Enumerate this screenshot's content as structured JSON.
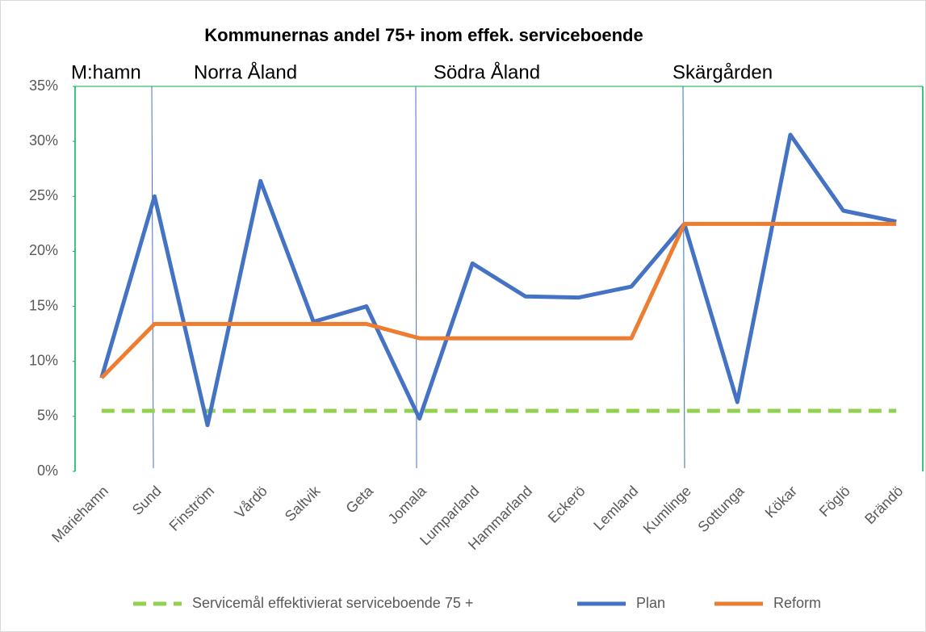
{
  "chart_data": {
    "type": "line",
    "title": "Kommunernas andel 75+ inom effek. serviceboende",
    "annotations": [
      "M:hamn",
      "Norra Åland",
      "Södra Åland",
      "Skärgården"
    ],
    "categories": [
      "Mariehamn",
      "Sund",
      "Finström",
      "Vårdö",
      "Saltvik",
      "Geta",
      "Jomala",
      "Lumparland",
      "Hammarland",
      "Eckerö",
      "Lemland",
      "Kumlinge",
      "Sottunga",
      "Kökar",
      "Föglö",
      "Brändö"
    ],
    "series": [
      {
        "name": "Servicemål effektivierat serviceboende 75 +",
        "color": "#92d050",
        "dashed": true,
        "values": [
          5.5,
          5.5,
          5.5,
          5.5,
          5.5,
          5.5,
          5.5,
          5.5,
          5.5,
          5.5,
          5.5,
          5.5,
          5.5,
          5.5,
          5.5,
          5.5
        ]
      },
      {
        "name": "Plan",
        "color": "#4472c4",
        "values": [
          8.5,
          25.0,
          4.2,
          26.4,
          13.6,
          15.0,
          4.8,
          18.9,
          15.9,
          15.8,
          16.8,
          22.5,
          6.3,
          30.6,
          23.7,
          22.7
        ]
      },
      {
        "name": "Reform",
        "color": "#ed7d31",
        "values": [
          8.5,
          13.4,
          13.4,
          13.4,
          13.4,
          13.4,
          12.1,
          12.1,
          12.1,
          12.1,
          12.1,
          22.5,
          22.5,
          22.5,
          22.5,
          22.5
        ]
      }
    ],
    "ylim": [
      0,
      35
    ],
    "yticks": [
      {
        "value": 0,
        "label": "0%"
      },
      {
        "value": 5,
        "label": "5%"
      },
      {
        "value": 10,
        "label": "10%"
      },
      {
        "value": 15,
        "label": "15%"
      },
      {
        "value": 20,
        "label": "20%"
      },
      {
        "value": 25,
        "label": "25%"
      },
      {
        "value": 30,
        "label": "30%"
      },
      {
        "value": 35,
        "label": "35%"
      }
    ],
    "legend": "bottom"
  }
}
